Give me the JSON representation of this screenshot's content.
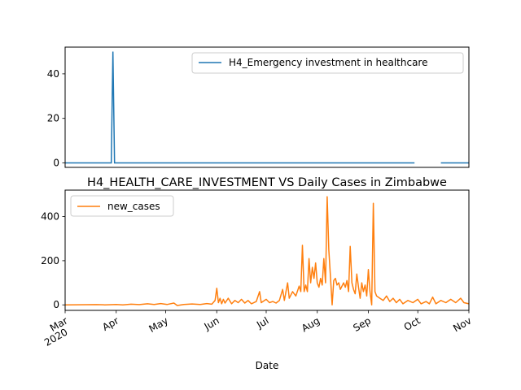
{
  "chart_data": [
    {
      "type": "line",
      "title": "",
      "xlabel": "",
      "ylabel": "",
      "ylim": [
        -2,
        52
      ],
      "yticks": [
        0,
        20,
        40
      ],
      "legend": {
        "position": "upper right",
        "entries": [
          "H4_Emergency investment in healthcare"
        ]
      },
      "series": [
        {
          "name": "H4_Emergency investment in healthcare",
          "color": "#1f77b4",
          "segments": [
            [
              [
                "2020-03-01",
                0
              ],
              [
                "2020-03-29",
                0
              ],
              [
                "2020-03-30",
                50
              ],
              [
                "2020-03-31",
                0
              ],
              [
                "2020-09-29",
                0
              ]
            ],
            [
              [
                "2020-10-15",
                0
              ],
              [
                "2020-11-01",
                0
              ]
            ]
          ]
        }
      ]
    },
    {
      "type": "line",
      "title": "H4_HEALTH_CARE_INVESTMENT VS Daily Cases in Zimbabwe",
      "xlabel": "Date",
      "ylabel": "",
      "ylim": [
        -25,
        520
      ],
      "yticks": [
        0,
        200,
        400
      ],
      "xlim": [
        "2020-03-01",
        "2020-11-01"
      ],
      "xticks": [
        {
          "date": "2020-03-01",
          "label": "Mar",
          "sublabel": "2020"
        },
        {
          "date": "2020-04-01",
          "label": "Apr"
        },
        {
          "date": "2020-05-01",
          "label": "May"
        },
        {
          "date": "2020-06-01",
          "label": "Jun"
        },
        {
          "date": "2020-07-01",
          "label": "Jul"
        },
        {
          "date": "2020-08-01",
          "label": "Aug"
        },
        {
          "date": "2020-09-01",
          "label": "Sep"
        },
        {
          "date": "2020-10-01",
          "label": "Oct"
        },
        {
          "date": "2020-11-01",
          "label": "Nov"
        }
      ],
      "legend": {
        "position": "upper left",
        "entries": [
          "new_cases"
        ]
      },
      "series": [
        {
          "name": "new_cases",
          "color": "#ff7f0e",
          "points": [
            [
              "2020-03-01",
              0
            ],
            [
              "2020-03-20",
              1
            ],
            [
              "2020-03-25",
              0
            ],
            [
              "2020-04-01",
              2
            ],
            [
              "2020-04-05",
              0
            ],
            [
              "2020-04-10",
              3
            ],
            [
              "2020-04-15",
              1
            ],
            [
              "2020-04-20",
              5
            ],
            [
              "2020-04-24",
              2
            ],
            [
              "2020-04-28",
              6
            ],
            [
              "2020-05-02",
              2
            ],
            [
              "2020-05-06",
              8
            ],
            [
              "2020-05-08",
              -3
            ],
            [
              "2020-05-12",
              2
            ],
            [
              "2020-05-17",
              4
            ],
            [
              "2020-05-22",
              2
            ],
            [
              "2020-05-26",
              6
            ],
            [
              "2020-05-29",
              3
            ],
            [
              "2020-05-31",
              20
            ],
            [
              "2020-06-01",
              75
            ],
            [
              "2020-06-02",
              10
            ],
            [
              "2020-06-03",
              30
            ],
            [
              "2020-06-04",
              5
            ],
            [
              "2020-06-05",
              25
            ],
            [
              "2020-06-06",
              8
            ],
            [
              "2020-06-08",
              30
            ],
            [
              "2020-06-10",
              5
            ],
            [
              "2020-06-12",
              20
            ],
            [
              "2020-06-14",
              10
            ],
            [
              "2020-06-16",
              25
            ],
            [
              "2020-06-18",
              8
            ],
            [
              "2020-06-20",
              20
            ],
            [
              "2020-06-22",
              5
            ],
            [
              "2020-06-25",
              15
            ],
            [
              "2020-06-27",
              60
            ],
            [
              "2020-06-28",
              10
            ],
            [
              "2020-07-01",
              25
            ],
            [
              "2020-07-03",
              10
            ],
            [
              "2020-07-05",
              15
            ],
            [
              "2020-07-07",
              8
            ],
            [
              "2020-07-09",
              20
            ],
            [
              "2020-07-11",
              70
            ],
            [
              "2020-07-12",
              20
            ],
            [
              "2020-07-14",
              100
            ],
            [
              "2020-07-15",
              30
            ],
            [
              "2020-07-17",
              60
            ],
            [
              "2020-07-19",
              40
            ],
            [
              "2020-07-21",
              85
            ],
            [
              "2020-07-22",
              60
            ],
            [
              "2020-07-23",
              270
            ],
            [
              "2020-07-24",
              60
            ],
            [
              "2020-07-25",
              90
            ],
            [
              "2020-07-26",
              60
            ],
            [
              "2020-07-27",
              210
            ],
            [
              "2020-07-28",
              100
            ],
            [
              "2020-07-29",
              170
            ],
            [
              "2020-07-30",
              120
            ],
            [
              "2020-07-31",
              190
            ],
            [
              "2020-08-01",
              100
            ],
            [
              "2020-08-02",
              80
            ],
            [
              "2020-08-03",
              120
            ],
            [
              "2020-08-04",
              90
            ],
            [
              "2020-08-05",
              210
            ],
            [
              "2020-08-06",
              100
            ],
            [
              "2020-08-07",
              490
            ],
            [
              "2020-08-08",
              250
            ],
            [
              "2020-08-09",
              130
            ],
            [
              "2020-08-10",
              0
            ],
            [
              "2020-08-11",
              110
            ],
            [
              "2020-08-12",
              120
            ],
            [
              "2020-08-13",
              90
            ],
            [
              "2020-08-14",
              100
            ],
            [
              "2020-08-15",
              70
            ],
            [
              "2020-08-17",
              100
            ],
            [
              "2020-08-18",
              80
            ],
            [
              "2020-08-19",
              110
            ],
            [
              "2020-08-20",
              60
            ],
            [
              "2020-08-21",
              265
            ],
            [
              "2020-08-22",
              100
            ],
            [
              "2020-08-23",
              70
            ],
            [
              "2020-08-24",
              50
            ],
            [
              "2020-08-25",
              140
            ],
            [
              "2020-08-26",
              80
            ],
            [
              "2020-08-27",
              30
            ],
            [
              "2020-08-28",
              100
            ],
            [
              "2020-08-29",
              60
            ],
            [
              "2020-08-30",
              90
            ],
            [
              "2020-08-31",
              40
            ],
            [
              "2020-09-01",
              160
            ],
            [
              "2020-09-02",
              60
            ],
            [
              "2020-09-03",
              0
            ],
            [
              "2020-09-04",
              460
            ],
            [
              "2020-09-05",
              60
            ],
            [
              "2020-09-06",
              40
            ],
            [
              "2020-09-08",
              30
            ],
            [
              "2020-09-10",
              20
            ],
            [
              "2020-09-12",
              40
            ],
            [
              "2020-09-14",
              15
            ],
            [
              "2020-09-16",
              30
            ],
            [
              "2020-09-18",
              10
            ],
            [
              "2020-09-20",
              25
            ],
            [
              "2020-09-22",
              5
            ],
            [
              "2020-09-25",
              20
            ],
            [
              "2020-09-28",
              10
            ],
            [
              "2020-10-01",
              25
            ],
            [
              "2020-10-03",
              5
            ],
            [
              "2020-10-06",
              15
            ],
            [
              "2020-10-08",
              5
            ],
            [
              "2020-10-10",
              35
            ],
            [
              "2020-10-12",
              5
            ],
            [
              "2020-10-15",
              20
            ],
            [
              "2020-10-18",
              10
            ],
            [
              "2020-10-21",
              25
            ],
            [
              "2020-10-24",
              10
            ],
            [
              "2020-10-27",
              30
            ],
            [
              "2020-10-29",
              10
            ],
            [
              "2020-11-01",
              5
            ]
          ]
        }
      ]
    }
  ]
}
